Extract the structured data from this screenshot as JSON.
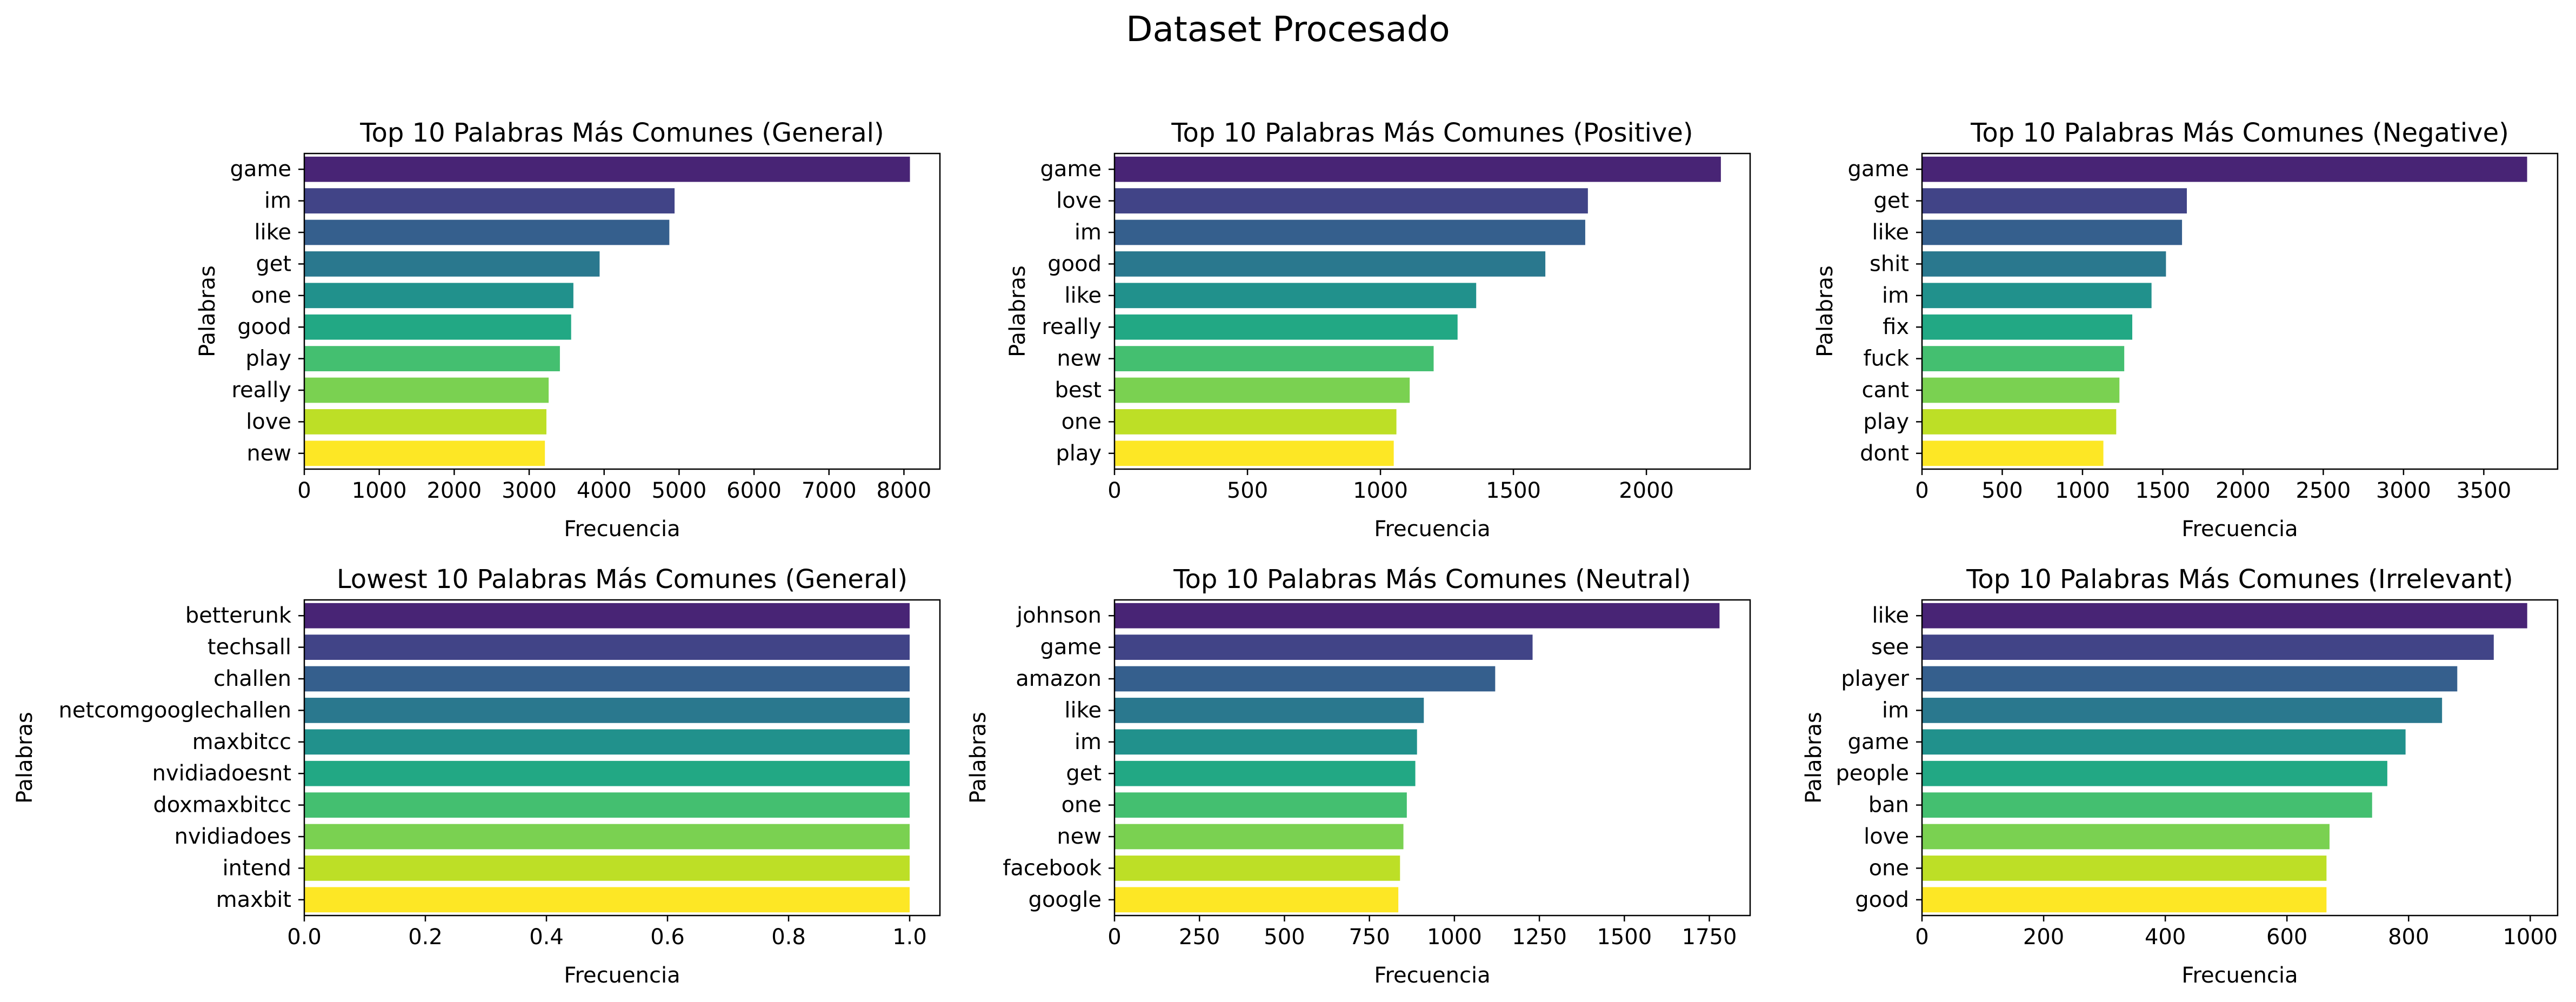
{
  "suptitle": "Dataset Procesado",
  "colors": [
    "#482475",
    "#414487",
    "#355f8d",
    "#2a788e",
    "#21918c",
    "#22a884",
    "#44bf70",
    "#7ad151",
    "#bddf26",
    "#fde725"
  ],
  "chart_data": [
    {
      "type": "bar",
      "orientation": "horizontal",
      "title": "Top 10 Palabras Más Comunes (General)",
      "xlabel": "Frecuencia",
      "ylabel": "Palabras",
      "categories": [
        "game",
        "im",
        "like",
        "get",
        "one",
        "good",
        "play",
        "really",
        "love",
        "new"
      ],
      "values": [
        8080,
        4940,
        4870,
        3940,
        3590,
        3560,
        3410,
        3260,
        3230,
        3210
      ],
      "xlim": [
        0,
        8480
      ],
      "xticks": [
        0,
        1000,
        2000,
        3000,
        4000,
        5000,
        6000,
        7000,
        8000
      ],
      "xtick_labels": [
        "0",
        "1000",
        "2000",
        "3000",
        "4000",
        "5000",
        "6000",
        "7000",
        "8000"
      ]
    },
    {
      "type": "bar",
      "orientation": "horizontal",
      "title": "Top 10 Palabras Más Comunes (Positive)",
      "xlabel": "Frecuencia",
      "ylabel": "Palabras",
      "categories": [
        "game",
        "love",
        "im",
        "good",
        "like",
        "really",
        "new",
        "best",
        "one",
        "play"
      ],
      "values": [
        2280,
        1780,
        1770,
        1620,
        1360,
        1290,
        1200,
        1110,
        1060,
        1050
      ],
      "xlim": [
        0,
        2390
      ],
      "xticks": [
        0,
        500,
        1000,
        1500,
        2000
      ],
      "xtick_labels": [
        "0",
        "500",
        "1000",
        "1500",
        "2000"
      ]
    },
    {
      "type": "bar",
      "orientation": "horizontal",
      "title": "Top 10 Palabras Más Comunes (Negative)",
      "xlabel": "Frecuencia",
      "ylabel": "Palabras",
      "categories": [
        "game",
        "get",
        "like",
        "shit",
        "im",
        "fix",
        "fuck",
        "cant",
        "play",
        "dont"
      ],
      "values": [
        3770,
        1650,
        1620,
        1520,
        1430,
        1310,
        1260,
        1230,
        1210,
        1130
      ],
      "xlim": [
        0,
        3960
      ],
      "xticks": [
        0,
        500,
        1000,
        1500,
        2000,
        2500,
        3000,
        3500
      ],
      "xtick_labels": [
        "0",
        "500",
        "1000",
        "1500",
        "2000",
        "2500",
        "3000",
        "3500"
      ]
    },
    {
      "type": "bar",
      "orientation": "horizontal",
      "title": "Lowest 10 Palabras Más Comunes (General)",
      "xlabel": "Frecuencia",
      "ylabel": "Palabras",
      "categories": [
        "betterunk",
        "techsall",
        "challen",
        "netcomgooglechallen",
        "maxbitcc",
        "nvidiadoesnt",
        "doxmaxbitcc",
        "nvidiadoes",
        "intend",
        "maxbit"
      ],
      "values": [
        1,
        1,
        1,
        1,
        1,
        1,
        1,
        1,
        1,
        1
      ],
      "xlim": [
        0,
        1.05
      ],
      "xticks": [
        0,
        0.2,
        0.4,
        0.6,
        0.8,
        1.0
      ],
      "xtick_labels": [
        "0.0",
        "0.2",
        "0.4",
        "0.6",
        "0.8",
        "1.0"
      ]
    },
    {
      "type": "bar",
      "orientation": "horizontal",
      "title": "Top 10 Palabras Más Comunes (Neutral)",
      "xlabel": "Frecuencia",
      "ylabel": "Palabras",
      "categories": [
        "johnson",
        "game",
        "amazon",
        "like",
        "im",
        "get",
        "one",
        "new",
        "facebook",
        "google"
      ],
      "values": [
        1780,
        1230,
        1120,
        910,
        890,
        885,
        860,
        850,
        840,
        835
      ],
      "xlim": [
        0,
        1870
      ],
      "xticks": [
        0,
        250,
        500,
        750,
        1000,
        1250,
        1500,
        1750
      ],
      "xtick_labels": [
        "0",
        "250",
        "500",
        "750",
        "1000",
        "1250",
        "1500",
        "1750"
      ]
    },
    {
      "type": "bar",
      "orientation": "horizontal",
      "title": "Top 10 Palabras Más Comunes (Irrelevant)",
      "xlabel": "Frecuencia",
      "ylabel": "Palabras",
      "categories": [
        "like",
        "see",
        "player",
        "im",
        "game",
        "people",
        "ban",
        "love",
        "one",
        "good"
      ],
      "values": [
        995,
        940,
        880,
        855,
        795,
        765,
        740,
        670,
        665,
        665
      ],
      "xlim": [
        0,
        1045
      ],
      "xticks": [
        0,
        200,
        400,
        600,
        800,
        1000
      ],
      "xtick_labels": [
        "0",
        "200",
        "400",
        "600",
        "800",
        "1000"
      ]
    }
  ]
}
